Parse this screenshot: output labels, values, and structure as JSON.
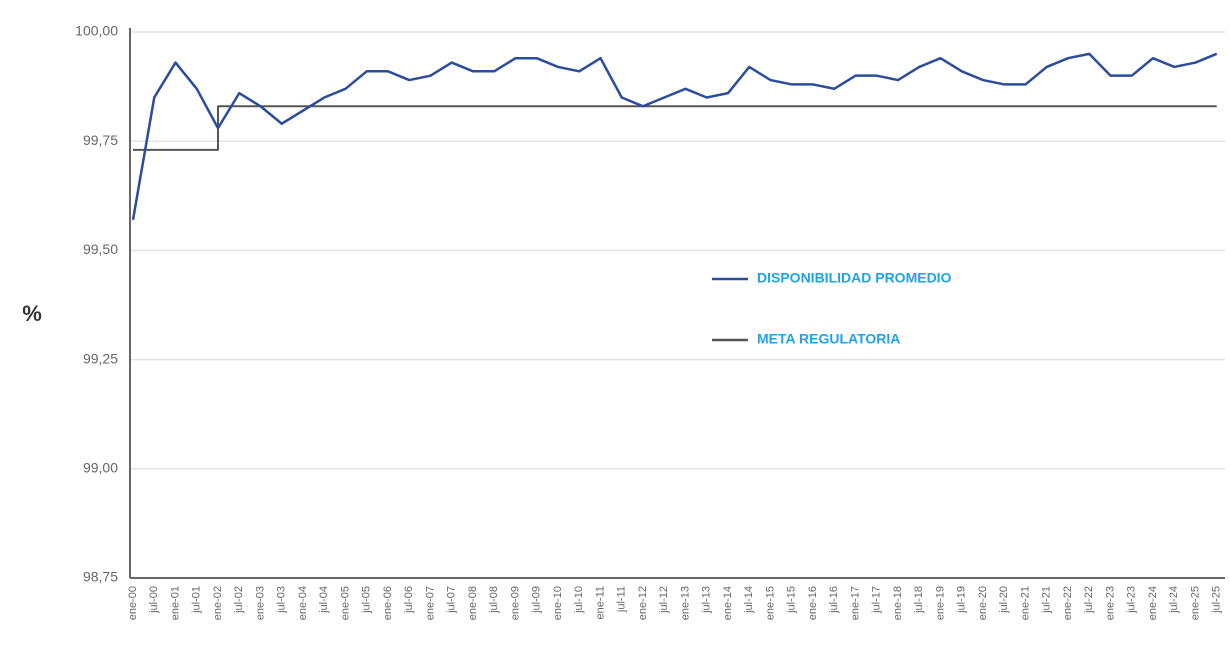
{
  "chart_data": {
    "type": "line",
    "ylabel": "%",
    "categories": [
      "ene-00",
      "jul-00",
      "ene-01",
      "jul-01",
      "ene-02",
      "jul-02",
      "ene-03",
      "jul-03",
      "ene-04",
      "jul-04",
      "ene-05",
      "jul-05",
      "ene-06",
      "jul-06",
      "ene-07",
      "jul-07",
      "ene-08",
      "jul-08",
      "ene-09",
      "jul-09",
      "ene-10",
      "jul-10",
      "ene-11",
      "jul-11",
      "ene-12",
      "jul-12",
      "ene-13",
      "jul-13",
      "ene-14",
      "jul-14",
      "ene-15",
      "jul-15",
      "ene-16",
      "jul-16",
      "ene-17",
      "jul-17",
      "ene-18",
      "jul-18",
      "ene-19",
      "jul-19",
      "ene-20",
      "jul-20",
      "ene-21",
      "jul-21",
      "ene-22",
      "jul-22",
      "ene-23",
      "jul-23",
      "ene-24",
      "jul-24",
      "ene-25",
      "jul-25"
    ],
    "series": [
      {
        "name": "DISPONIBILIDAD PROMEDIO",
        "color": "#2b4d9b",
        "step": false,
        "values": [
          99.57,
          99.85,
          99.93,
          99.87,
          99.78,
          99.86,
          99.83,
          99.79,
          99.82,
          99.85,
          99.87,
          99.91,
          99.91,
          99.89,
          99.9,
          99.93,
          99.91,
          99.91,
          99.94,
          99.94,
          99.92,
          99.91,
          99.94,
          99.85,
          99.83,
          99.85,
          99.87,
          99.85,
          99.86,
          99.92,
          99.89,
          99.88,
          99.88,
          99.87,
          99.9,
          99.9,
          99.89,
          99.92,
          99.94,
          99.91,
          99.89,
          99.88,
          99.88,
          99.92,
          99.94,
          99.95,
          99.9,
          99.9,
          99.94,
          99.92,
          99.93,
          99.95
        ]
      },
      {
        "name": "META REGULATORIA",
        "color": "#555555",
        "step": true,
        "values": [
          99.73,
          99.73,
          99.73,
          99.73,
          99.83,
          99.83,
          99.83,
          99.83,
          99.83,
          99.83,
          99.83,
          99.83,
          99.83,
          99.83,
          99.83,
          99.83,
          99.83,
          99.83,
          99.83,
          99.83,
          99.83,
          99.83,
          99.83,
          99.83,
          99.83,
          99.83,
          99.83,
          99.83,
          99.83,
          99.83,
          99.83,
          99.83,
          99.83,
          99.83,
          99.83,
          99.83,
          99.83,
          99.83,
          99.83,
          99.83,
          99.83,
          99.83,
          99.83,
          99.83,
          99.83,
          99.83,
          99.83,
          99.83,
          99.83,
          99.83,
          99.83,
          99.83
        ]
      }
    ],
    "ylim": [
      98.75,
      100
    ],
    "yticks": [
      {
        "value": 98.75,
        "label": "98,75"
      },
      {
        "value": 99,
        "label": "99,00"
      },
      {
        "value": 99.25,
        "label": "99,25"
      },
      {
        "value": 99.5,
        "label": "99,50"
      },
      {
        "value": 99.75,
        "label": "99,75"
      },
      {
        "value": 100,
        "label": "100,00"
      }
    ],
    "grid": true,
    "legend_color": "#1fa3e8"
  }
}
